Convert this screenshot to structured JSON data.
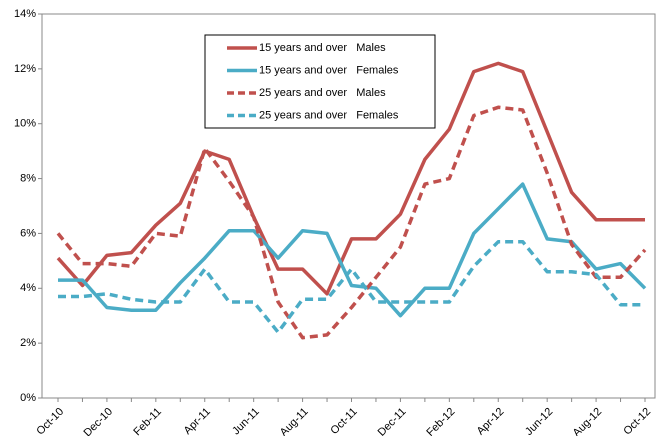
{
  "chart_data": {
    "type": "line",
    "categories": [
      "Oct-10",
      null,
      "Dec-10",
      null,
      "Feb-11",
      null,
      "Apr-11",
      null,
      "Jun-11",
      null,
      "Aug-11",
      null,
      "Oct-11",
      null,
      "Dec-11",
      null,
      "Feb-12",
      null,
      "Apr-12",
      null,
      "Jun-12",
      null,
      "Aug-12",
      null,
      "Oct-12"
    ],
    "series": [
      {
        "name": "15 years and over   Males",
        "color": "#c0504d",
        "dash": false,
        "values": [
          5.1,
          4.1,
          5.2,
          5.3,
          6.3,
          7.1,
          9.0,
          8.7,
          6.6,
          4.7,
          4.7,
          3.8,
          5.8,
          5.8,
          6.7,
          8.7,
          9.8,
          11.9,
          12.2,
          11.9,
          9.7,
          7.5,
          6.5,
          6.5,
          6.5
        ]
      },
      {
        "name": "15 years and over   Females",
        "color": "#4bacc6",
        "dash": false,
        "values": [
          4.3,
          4.3,
          3.3,
          3.2,
          3.2,
          4.2,
          5.1,
          6.1,
          6.1,
          5.1,
          6.1,
          6.0,
          4.1,
          4.0,
          3.0,
          4.0,
          4.0,
          6.0,
          6.9,
          7.8,
          5.8,
          5.7,
          4.7,
          4.9,
          4.0
        ]
      },
      {
        "name": "25 years and over   Males",
        "color": "#c0504d",
        "dash": true,
        "values": [
          6.0,
          4.9,
          4.9,
          4.8,
          6.0,
          5.9,
          9.1,
          7.9,
          6.6,
          3.5,
          2.2,
          2.3,
          3.3,
          4.4,
          5.5,
          7.8,
          8.0,
          10.3,
          10.6,
          10.5,
          8.2,
          5.6,
          4.4,
          4.4,
          5.4
        ]
      },
      {
        "name": "25 years and over   Females",
        "color": "#4bacc6",
        "dash": true,
        "values": [
          3.7,
          3.7,
          3.8,
          3.6,
          3.5,
          3.5,
          4.7,
          3.5,
          3.5,
          2.4,
          3.6,
          3.6,
          4.7,
          3.5,
          3.5,
          3.5,
          3.5,
          4.8,
          5.7,
          5.7,
          4.6,
          4.6,
          4.5,
          3.4,
          3.4
        ]
      }
    ],
    "ylim": [
      0,
      14
    ],
    "yticks": [
      {
        "value": 0,
        "label": "0%"
      },
      {
        "value": 2,
        "label": "2%"
      },
      {
        "value": 4,
        "label": "4%"
      },
      {
        "value": 6,
        "label": "6%"
      },
      {
        "value": 8,
        "label": "8%"
      },
      {
        "value": 10,
        "label": "10%"
      },
      {
        "value": 12,
        "label": "12%"
      },
      {
        "value": 14,
        "label": "14%"
      }
    ],
    "grid": false,
    "legend": "top-center"
  }
}
